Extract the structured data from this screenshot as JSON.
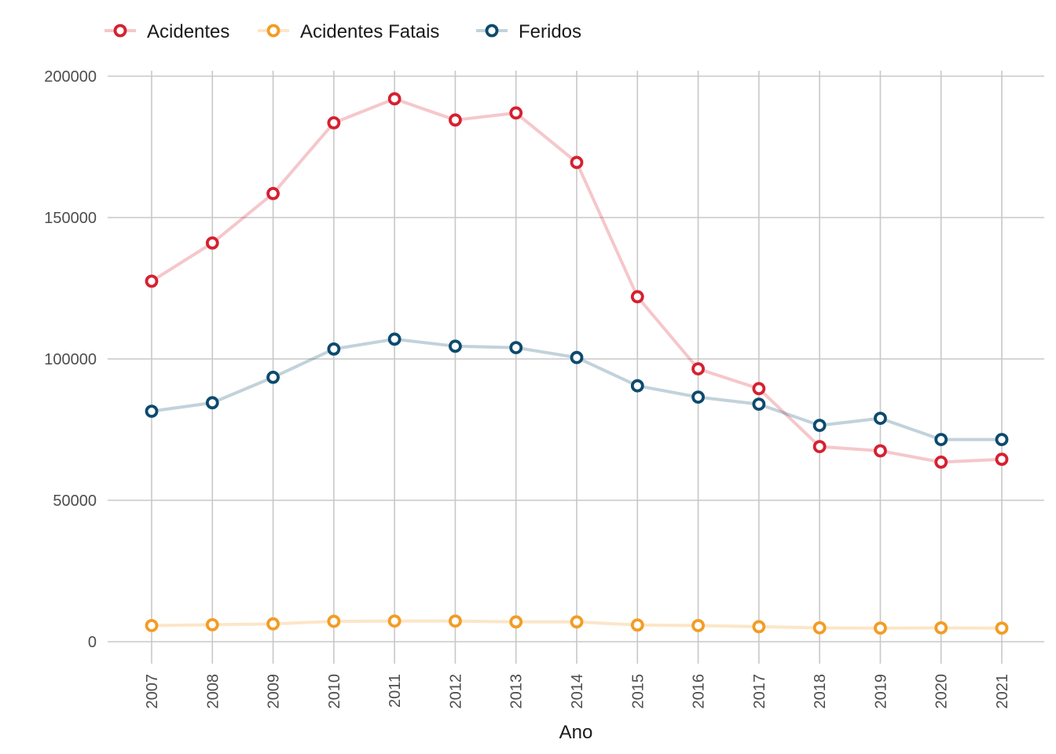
{
  "chart_data": {
    "type": "line",
    "title": "",
    "xlabel": "Ano",
    "ylabel": "",
    "x": [
      "2007",
      "2008",
      "2009",
      "2010",
      "2011",
      "2012",
      "2013",
      "2014",
      "2015",
      "2016",
      "2017",
      "2018",
      "2019",
      "2020",
      "2021"
    ],
    "ylim": [
      0,
      200000
    ],
    "yticks": [
      "0",
      "50000",
      "100000",
      "150000",
      "200000"
    ],
    "grid": true,
    "legend_position": "top-left",
    "series": [
      {
        "name": "Acidentes",
        "color": "#d62030",
        "values": [
          127500,
          141000,
          158500,
          183500,
          192000,
          184500,
          187000,
          169500,
          122000,
          96500,
          89500,
          69000,
          67500,
          63500,
          64500
        ]
      },
      {
        "name": "Acidentes Fatais",
        "color": "#f39c25",
        "values": [
          5700,
          6000,
          6300,
          7200,
          7300,
          7300,
          7000,
          7000,
          5900,
          5700,
          5300,
          4900,
          4800,
          4900,
          4800
        ]
      },
      {
        "name": "Feridos",
        "color": "#0c4a6e",
        "values": [
          81500,
          84500,
          93500,
          103500,
          107000,
          104500,
          104000,
          100500,
          90500,
          86500,
          84000,
          76500,
          79000,
          71500,
          71500
        ]
      }
    ]
  }
}
